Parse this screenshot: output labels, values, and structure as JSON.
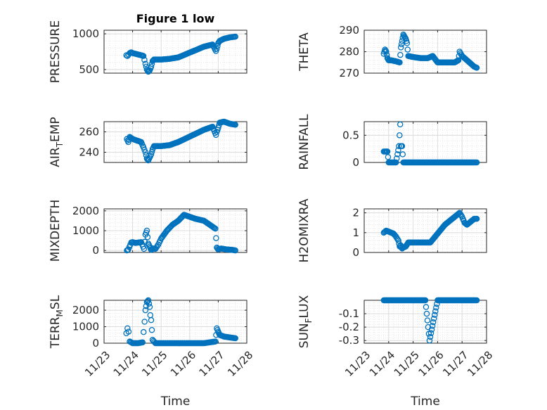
{
  "figure": {
    "title": "Figure 1 low",
    "marker_color": "#0072BD"
  },
  "chart_data": [
    {
      "type": "scatter",
      "title": "Figure 1 low",
      "ylabel": "PRESSURE",
      "xlabel": "",
      "ylim": [
        450,
        1050
      ],
      "yticks": [
        500,
        1000
      ],
      "xlim": [
        0,
        5
      ],
      "xtick_labels": [
        "11/23",
        "11/24",
        "11/25",
        "11/26",
        "11/27",
        "11/28"
      ],
      "grid": true,
      "minor_grid": true,
      "x": [
        0.78,
        0.82,
        0.86,
        0.9,
        0.95,
        1.0,
        1.1,
        1.2,
        1.3,
        1.38,
        1.45,
        1.5,
        1.55,
        1.6,
        1.65,
        1.7,
        1.75,
        2.0,
        2.3,
        2.6,
        2.9,
        3.2,
        3.5,
        3.8,
        3.92,
        3.95,
        4.0,
        4.05,
        4.2,
        4.4,
        4.5,
        4.6
      ],
      "y": [
        700,
        690,
        710,
        730,
        740,
        730,
        720,
        710,
        700,
        690,
        580,
        500,
        470,
        490,
        540,
        620,
        640,
        640,
        650,
        670,
        720,
        770,
        820,
        850,
        760,
        790,
        870,
        900,
        930,
        950,
        955,
        960
      ]
    },
    {
      "type": "scatter",
      "title": "",
      "ylabel": "THETA",
      "xlabel": "",
      "ylim": [
        270,
        290
      ],
      "yticks": [
        270,
        280,
        290
      ],
      "xlim": [
        0,
        5
      ],
      "xtick_labels": [
        "11/23",
        "11/24",
        "11/25",
        "11/26",
        "11/27",
        "11/28"
      ],
      "grid": true,
      "minor_grid": true,
      "x": [
        0.8,
        0.85,
        0.9,
        0.95,
        1.0,
        1.1,
        1.3,
        1.45,
        1.5,
        1.55,
        1.6,
        1.65,
        1.7,
        1.75,
        1.8,
        2.0,
        2.3,
        2.6,
        2.8,
        3.0,
        3.2,
        3.5,
        3.7,
        3.85,
        3.9,
        4.0,
        4.1,
        4.3,
        4.5,
        4.6
      ],
      "y": [
        279,
        281,
        280,
        277,
        276,
        276,
        275.5,
        275,
        282,
        285,
        288,
        287,
        286,
        284,
        278,
        277.5,
        277,
        277,
        278,
        275,
        275,
        275,
        275,
        276,
        280,
        278,
        277,
        275,
        273,
        272.5
      ]
    },
    {
      "type": "scatter",
      "title": "",
      "ylabel": "AIR_TEMP",
      "xlabel": "",
      "ylim": [
        230,
        270
      ],
      "yticks": [
        240,
        260
      ],
      "xlim": [
        0,
        5
      ],
      "xtick_labels": [
        "11/23",
        "11/24",
        "11/25",
        "11/26",
        "11/27",
        "11/28"
      ],
      "grid": true,
      "minor_grid": true,
      "x": [
        0.8,
        0.85,
        0.9,
        0.95,
        1.0,
        1.1,
        1.2,
        1.3,
        1.38,
        1.45,
        1.5,
        1.55,
        1.6,
        1.65,
        1.7,
        1.75,
        2.0,
        2.3,
        2.6,
        2.9,
        3.2,
        3.5,
        3.8,
        3.92,
        3.95,
        4.0,
        4.05,
        4.2,
        4.4,
        4.6
      ],
      "y": [
        253,
        250,
        255,
        254,
        253,
        252,
        251,
        250,
        245,
        240,
        234,
        232,
        235,
        238,
        243,
        246,
        246,
        247,
        250,
        254,
        258,
        262,
        265,
        257,
        260,
        264,
        269,
        270,
        268,
        267
      ]
    },
    {
      "type": "scatter",
      "title": "",
      "ylabel": "RAINFALL",
      "xlabel": "",
      "ylim": [
        0,
        0.75
      ],
      "yticks": [
        0,
        0.5
      ],
      "xlim": [
        0,
        5
      ],
      "xtick_labels": [
        "11/23",
        "11/24",
        "11/25",
        "11/26",
        "11/27",
        "11/28"
      ],
      "grid": true,
      "minor_grid": true,
      "x": [
        0.8,
        0.9,
        0.95,
        1.0,
        1.1,
        1.2,
        1.3,
        1.42,
        1.47,
        1.5,
        1.55,
        1.6,
        1.8,
        2.0,
        2.5,
        3.0,
        3.5,
        4.0,
        4.5,
        4.6
      ],
      "y": [
        0.2,
        0.2,
        0.2,
        0,
        0,
        0,
        0,
        0.3,
        0.7,
        0.3,
        0.3,
        0,
        0,
        0,
        0,
        0,
        0,
        0,
        0,
        0
      ]
    },
    {
      "type": "scatter",
      "title": "",
      "ylabel": "MIXDEPTH",
      "xlabel": "",
      "ylim": [
        -100,
        2100
      ],
      "yticks": [
        0,
        1000,
        2000
      ],
      "xlim": [
        0,
        5
      ],
      "xtick_labels": [
        "11/23",
        "11/24",
        "11/25",
        "11/26",
        "11/27",
        "11/28"
      ],
      "grid": true,
      "minor_grid": true,
      "x": [
        0.8,
        0.85,
        0.95,
        1.0,
        1.1,
        1.2,
        1.3,
        1.4,
        1.45,
        1.5,
        1.55,
        1.6,
        1.65,
        1.7,
        1.8,
        1.9,
        2.0,
        2.2,
        2.4,
        2.6,
        2.8,
        3.0,
        3.2,
        3.5,
        3.6,
        3.9,
        3.95,
        4.0,
        4.1,
        4.3,
        4.5,
        4.6
      ],
      "y": [
        0,
        50,
        400,
        420,
        380,
        400,
        420,
        80,
        800,
        1000,
        350,
        200,
        30,
        100,
        80,
        300,
        600,
        1000,
        1300,
        1500,
        1800,
        1700,
        1600,
        1500,
        1400,
        1100,
        150,
        50,
        100,
        50,
        30,
        0
      ]
    },
    {
      "type": "scatter",
      "title": "",
      "ylabel": "H2OMIXRA",
      "xlabel": "",
      "ylim": [
        0,
        2.2
      ],
      "yticks": [
        0,
        1,
        2
      ],
      "xlim": [
        0,
        5
      ],
      "xtick_labels": [
        "11/23",
        "11/24",
        "11/25",
        "11/26",
        "11/27",
        "11/28"
      ],
      "grid": true,
      "minor_grid": true,
      "x": [
        0.8,
        0.9,
        1.0,
        1.1,
        1.2,
        1.3,
        1.4,
        1.45,
        1.5,
        1.55,
        1.6,
        1.7,
        1.8,
        2.0,
        2.3,
        2.5,
        2.7,
        2.9,
        3.1,
        3.3,
        3.5,
        3.7,
        3.8,
        3.9,
        4.0,
        4.1,
        4.2,
        4.3,
        4.5,
        4.6
      ],
      "y": [
        1.0,
        1.1,
        1.05,
        1.0,
        0.95,
        0.8,
        0.6,
        0.3,
        0.35,
        0.2,
        0.25,
        0.3,
        0.5,
        0.5,
        0.5,
        0.5,
        0.5,
        0.8,
        1.1,
        1.4,
        1.6,
        1.8,
        1.9,
        2.0,
        1.8,
        1.5,
        1.4,
        1.5,
        1.7,
        1.7
      ]
    },
    {
      "type": "scatter",
      "title": "",
      "ylabel": "TERR_MSL",
      "xlabel": "Time",
      "ylim": [
        0,
        2600
      ],
      "yticks": [
        0,
        1000,
        2000
      ],
      "xlim": [
        0,
        5
      ],
      "xtick_labels": [
        "11/23",
        "11/24",
        "11/25",
        "11/26",
        "11/27",
        "11/28"
      ],
      "grid": true,
      "minor_grid": true,
      "x": [
        0.78,
        0.82,
        0.86,
        0.9,
        1.0,
        1.2,
        1.35,
        1.42,
        1.45,
        1.5,
        1.55,
        1.6,
        1.62,
        1.65,
        1.7,
        1.8,
        2.0,
        2.5,
        3.0,
        3.5,
        3.9,
        3.95,
        4.0,
        4.05,
        4.2,
        4.4,
        4.6
      ],
      "y": [
        600,
        900,
        700,
        100,
        0,
        0,
        50,
        1300,
        2000,
        2500,
        2600,
        2200,
        1700,
        1400,
        200,
        0,
        0,
        0,
        0,
        0,
        100,
        900,
        700,
        500,
        400,
        350,
        300
      ]
    },
    {
      "type": "scatter",
      "title": "",
      "ylabel": "SUN_FLUX",
      "xlabel": "Time",
      "ylim": [
        -0.32,
        0
      ],
      "yticks": [
        -0.3,
        -0.2,
        -0.1
      ],
      "xlim": [
        0,
        5
      ],
      "xtick_labels": [
        "11/23",
        "11/24",
        "11/25",
        "11/26",
        "11/27",
        "11/28"
      ],
      "grid": true,
      "minor_grid": true,
      "x": [
        0.8,
        1.0,
        1.5,
        2.0,
        2.5,
        2.67,
        3.0,
        3.5,
        4.0,
        4.5,
        4.6
      ],
      "y": [
        0,
        0,
        0,
        0,
        0,
        -0.3,
        0,
        0,
        0,
        0,
        0
      ]
    }
  ]
}
